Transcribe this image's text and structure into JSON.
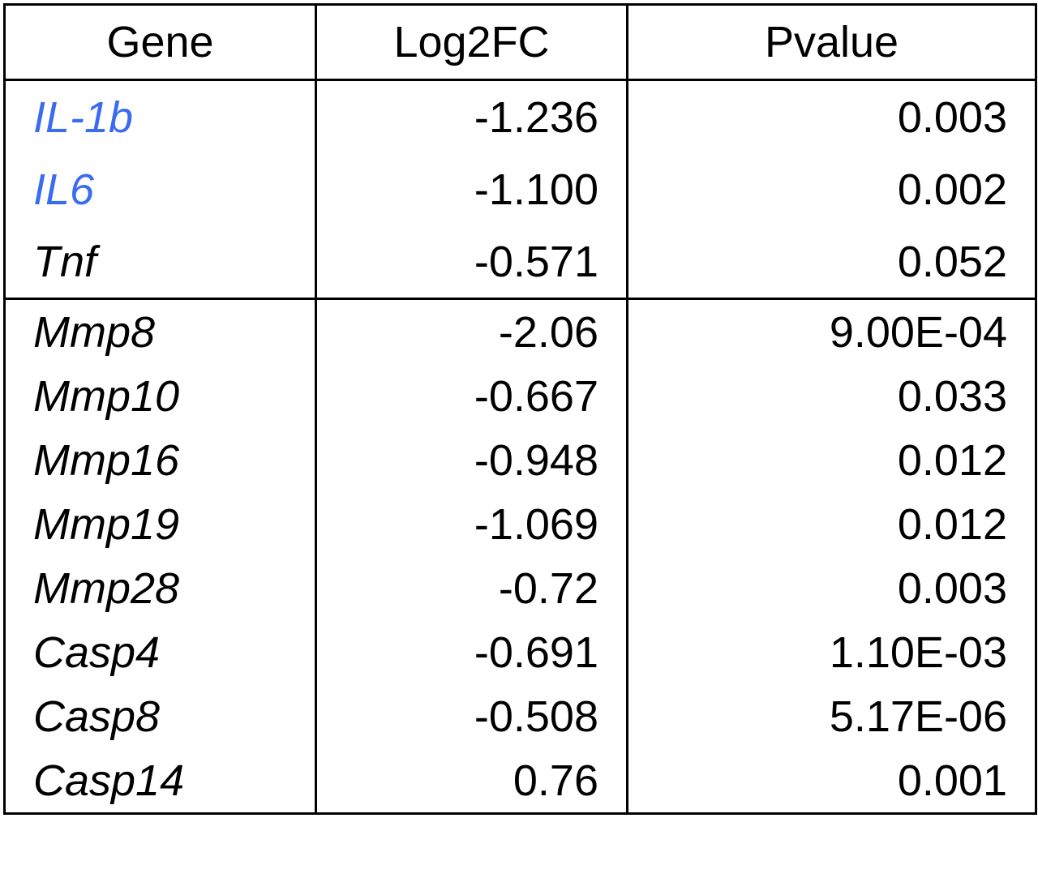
{
  "table": {
    "header": [
      "Gene",
      "Log2FC",
      "Pvalue"
    ],
    "groups": [
      [
        [
          "IL-1b",
          "-1.236",
          "0.003"
        ],
        [
          "IL6",
          "-1.100",
          "0.002"
        ],
        [
          "Tnf",
          "-0.571",
          "0.052"
        ]
      ],
      [
        [
          "Mmp8",
          "-2.06",
          "9.00E-04"
        ],
        [
          "Mmp10",
          "-0.667",
          "0.033"
        ],
        [
          "Mmp16",
          "-0.948",
          "0.012"
        ],
        [
          "Mmp19",
          "-1.069",
          "0.012"
        ],
        [
          "Mmp28",
          "-0.72",
          "0.003"
        ],
        [
          "Casp4",
          "-0.691",
          "1.10E-03"
        ],
        [
          "Casp8",
          "-0.508",
          "5.17E-06"
        ],
        [
          "Casp14",
          "0.76",
          "0.001"
        ]
      ]
    ]
  }
}
